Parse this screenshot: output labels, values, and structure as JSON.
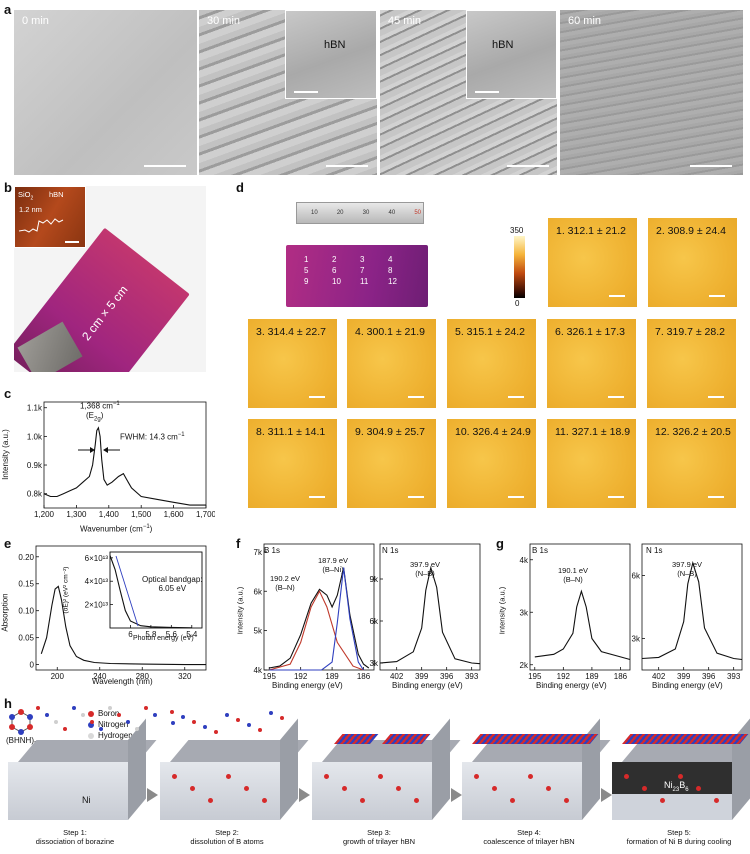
{
  "panel_letters": {
    "a": "a",
    "b": "b",
    "c": "c",
    "d": "d",
    "e": "e",
    "f": "f",
    "g": "g",
    "h": "h"
  },
  "panel_a": {
    "frames": [
      {
        "time": "0 min"
      },
      {
        "time": "30 min",
        "inset": "hBN"
      },
      {
        "time": "45 min",
        "inset": "hBN"
      },
      {
        "time": "60 min"
      }
    ]
  },
  "panel_b": {
    "size_label": "2 cm × 5 cm",
    "inset_left": "SiO",
    "inset_left_sub": "2",
    "inset_right": "hBN",
    "inset_height": "1.2 nm"
  },
  "panel_c": {
    "peak_label": "1,368 cm",
    "peak_label_sup": "−1",
    "mode_label": "(E",
    "mode_sub": "2g",
    "fwhm": "FWHM: 14.3 cm",
    "fwhm_sup": "−1",
    "xlabel": "Wavenumber (cm",
    "xlabel_sup": "−1",
    "ylabel": "Intensity (a.u.)"
  },
  "panel_d": {
    "colorbar_max": "350",
    "colorbar_min": "0",
    "ruler_numbers": [
      "10",
      "20",
      "30",
      "40",
      "50"
    ],
    "sample_numbers": [
      "1",
      "2",
      "3",
      "4",
      "5",
      "6",
      "7",
      "8",
      "9",
      "10",
      "11",
      "12"
    ],
    "tiles": [
      "1. 312.1 ± 21.2",
      "2. 308.9 ± 24.4",
      "3. 314.4 ± 22.7",
      "4. 300.1 ± 21.9",
      "5. 315.1 ± 24.2",
      "6. 326.1 ± 17.3",
      "7. 319.7 ± 28.2",
      "8. 311.1 ± 14.1",
      "9. 304.9 ± 25.7",
      "10. 326.4 ± 24.9",
      "11. 327.1 ± 18.9",
      "12. 326.2 ± 20.5"
    ]
  },
  "panel_e": {
    "bandgap_line1": "Optical bandgap:",
    "bandgap_line2": "6.05 eV",
    "inset_xlabel": "Photon energy (eV)",
    "inset_ylabel": "(αE)² (eV² cm⁻²)",
    "xlabel": "Wavelength (nm)",
    "ylabel": "Absorption"
  },
  "panel_f": {
    "b1s": "B 1s",
    "n1s": "N 1s",
    "peak1": "190.2 eV",
    "peak1_bond": "(B–N)",
    "peak2": "187.9 eV",
    "peak2_bond": "(B–Ni)",
    "npeak": "397.9 eV",
    "npeak_bond": "(N–B)",
    "xlabel": "Binding energy (eV)",
    "ylabel": "Intensity (a.u.)"
  },
  "panel_g": {
    "b1s": "B 1s",
    "n1s": "N 1s",
    "peak1": "190.1 eV",
    "peak1_bond": "(B–N)",
    "npeak": "397.9 eV",
    "npeak_bond": "(N–B)",
    "xlabel": "Binding energy (eV)",
    "ylabel": "Intensity (a.u.)"
  },
  "panel_h": {
    "precursor": "(BHNH)",
    "precursor_sub": "3",
    "legend": [
      "Boron",
      "Nitrogen",
      "Hydrogen"
    ],
    "legend_colors": [
      "#d62a2a",
      "#2f3fbf",
      "#d9d9d9"
    ],
    "substrate": "Ni",
    "boride": "Ni",
    "boride_sub1": "23",
    "boride_mid": "B",
    "boride_sub2": "6",
    "steps": [
      {
        "title": "Step 1:",
        "desc": "dissociation of borazine"
      },
      {
        "title": "Step 2:",
        "desc": "dissolution of B atoms"
      },
      {
        "title": "Step 3:",
        "desc": "growth of trilayer hBN"
      },
      {
        "title": "Step 4:",
        "desc": "coalescence of trilayer hBN"
      },
      {
        "title": "Step 5:",
        "desc": "formation of Ni   B  during cooling"
      }
    ]
  },
  "chart_data": [
    {
      "panel": "c",
      "type": "line",
      "title": "",
      "xlabel": "Wavenumber (cm−1)",
      "ylabel": "Intensity (a.u.)",
      "xlim": [
        1200,
        1700
      ],
      "ylim": [
        0.75,
        1.12
      ],
      "xticks": [
        1200,
        1300,
        1400,
        1500,
        1600,
        1700
      ],
      "xtick_labels": [
        "1,200",
        "1,300",
        "1,400",
        "1,500",
        "1,600",
        "1,700"
      ],
      "yticks": [
        0.8,
        0.9,
        1.0,
        1.1
      ],
      "ytick_labels": [
        "0.8k",
        "0.9k",
        "1.0k",
        "1.1k"
      ],
      "x": [
        1200,
        1220,
        1240,
        1260,
        1280,
        1300,
        1320,
        1340,
        1350,
        1358,
        1363,
        1368,
        1373,
        1378,
        1385,
        1395,
        1410,
        1430,
        1445,
        1455,
        1470,
        1500,
        1550,
        1600,
        1650,
        1700
      ],
      "y": [
        0.8,
        0.79,
        0.79,
        0.8,
        0.81,
        0.82,
        0.84,
        0.86,
        0.9,
        0.97,
        1.02,
        1.03,
        1.0,
        0.92,
        0.85,
        0.83,
        0.84,
        0.86,
        0.87,
        0.85,
        0.82,
        0.79,
        0.78,
        0.77,
        0.76,
        0.76
      ]
    },
    {
      "panel": "e",
      "type": "line",
      "title": "",
      "xlabel": "Wavelength (nm)",
      "ylabel": "Absorption",
      "xlim": [
        180,
        340
      ],
      "ylim": [
        -0.01,
        0.22
      ],
      "xticks": [
        200,
        240,
        280,
        320
      ],
      "yticks": [
        0,
        0.05,
        0.1,
        0.15,
        0.2
      ],
      "ytick_labels": [
        "0",
        "0.05",
        "0.10",
        "0.15",
        "0.20"
      ],
      "x": [
        185,
        190,
        195,
        198,
        201,
        204,
        208,
        212,
        218,
        225,
        235,
        250,
        280,
        320,
        340
      ],
      "y": [
        0.02,
        0.05,
        0.11,
        0.14,
        0.145,
        0.12,
        0.07,
        0.035,
        0.015,
        0.008,
        0.004,
        0.002,
        0.001,
        0.0,
        0.0
      ]
    },
    {
      "panel": "e-inset",
      "type": "line",
      "xlabel": "Photon energy (eV)",
      "ylabel": "(αE)² (eV² cm⁻²)",
      "xlim": [
        6.2,
        5.3
      ],
      "ylim": [
        0,
        65000000000000.0
      ],
      "xticks": [
        6.0,
        5.8,
        5.6,
        5.4
      ],
      "yticks": [
        20000000000000.0,
        40000000000000.0,
        60000000000000.0
      ],
      "x": [
        6.2,
        6.15,
        6.1,
        6.05,
        6.0,
        5.9,
        5.8,
        5.6,
        5.4
      ],
      "y": [
        62000000000000.0,
        50000000000000.0,
        32000000000000.0,
        15000000000000.0,
        6000000000000.0,
        2000000000000.0,
        1000000000000.0,
        500000000000.0,
        200000000000.0
      ]
    },
    {
      "panel": "f-B1s",
      "type": "line",
      "xlabel": "Binding energy (eV)",
      "ylabel": "Intensity (a.u.)",
      "xlim": [
        195.5,
        185
      ],
      "ylim": [
        4000,
        7200
      ],
      "xticks": [
        195,
        192,
        189,
        186
      ],
      "yticks": [
        4000,
        5000,
        6000,
        7000
      ],
      "ytick_labels": [
        "4k",
        "5k",
        "6k",
        "7k"
      ],
      "series": [
        {
          "x": [
            195,
            194,
            193,
            192,
            191,
            190.2,
            189.5,
            189,
            188.5,
            187.9,
            187.3,
            186.5,
            186,
            185.5
          ],
          "y": [
            4050,
            4100,
            4300,
            4900,
            5700,
            6050,
            5900,
            5600,
            5900,
            6600,
            5400,
            4400,
            4150,
            4050
          ]
        },
        {
          "x": [
            195,
            193,
            192,
            191,
            190.2,
            189.5,
            188.5,
            187,
            186
          ],
          "y": [
            4000,
            4150,
            4700,
            5600,
            6000,
            5600,
            4700,
            4100,
            4000
          ]
        },
        {
          "x": [
            195,
            190,
            189,
            188.5,
            187.9,
            187.3,
            186.5,
            186
          ],
          "y": [
            4000,
            4000,
            4200,
            5200,
            6600,
            5300,
            4200,
            4000
          ]
        }
      ]
    },
    {
      "panel": "f-N1s",
      "type": "line",
      "xlabel": "Binding energy (eV)",
      "ylabel": "Intensity (a.u.)",
      "xlim": [
        404,
        392
      ],
      "ylim": [
        2500,
        11500
      ],
      "xticks": [
        402,
        399,
        396,
        393
      ],
      "yticks": [
        3000,
        6000,
        9000
      ],
      "ytick_labels": [
        "3k",
        "6k",
        "9k"
      ],
      "x": [
        404,
        402,
        400,
        399,
        398.5,
        397.9,
        397.2,
        396.5,
        395,
        393,
        392
      ],
      "y": [
        3000,
        3100,
        3800,
        5500,
        8200,
        9800,
        8400,
        5200,
        3300,
        3000,
        2950
      ]
    },
    {
      "panel": "g-B1s",
      "type": "line",
      "xlabel": "Binding energy (eV)",
      "ylabel": "Intensity (a.u.)",
      "xlim": [
        195.5,
        185
      ],
      "ylim": [
        1900,
        4300
      ],
      "xticks": [
        195,
        192,
        189,
        186
      ],
      "yticks": [
        2000,
        3000,
        4000
      ],
      "ytick_labels": [
        "2k",
        "3k",
        "4k"
      ],
      "x": [
        195,
        193,
        192,
        191,
        190.6,
        190.1,
        189.6,
        189,
        188,
        186,
        185
      ],
      "y": [
        2150,
        2200,
        2300,
        2600,
        3100,
        3400,
        3100,
        2500,
        2250,
        2150,
        2100
      ]
    },
    {
      "panel": "g-N1s",
      "type": "line",
      "xlabel": "Binding energy (eV)",
      "ylabel": "Intensity (a.u.)",
      "xlim": [
        404,
        392
      ],
      "ylim": [
        1500,
        7500
      ],
      "xticks": [
        402,
        399,
        396,
        393
      ],
      "yticks": [
        3000,
        6000
      ],
      "ytick_labels": [
        "3k",
        "6k"
      ],
      "x": [
        404,
        402,
        400,
        399,
        398.5,
        397.9,
        397.2,
        396.5,
        395,
        393,
        392
      ],
      "y": [
        2050,
        2100,
        2500,
        3800,
        5600,
        6600,
        5700,
        3500,
        2300,
        2050,
        2000
      ]
    }
  ]
}
